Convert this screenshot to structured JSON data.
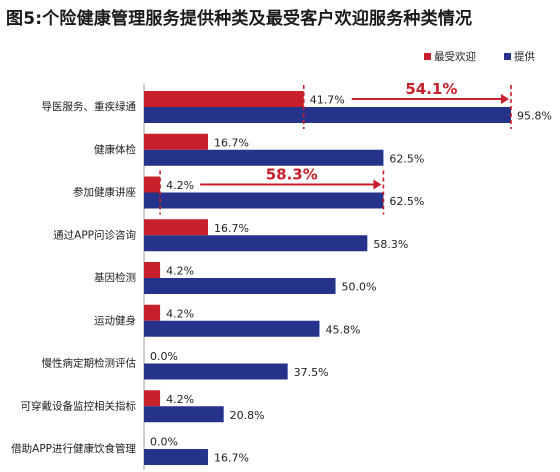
{
  "title": "图5:个险健康管理服务提供种类及最受客户欢迎服务种类情况",
  "chart_data": {
    "type": "bar",
    "orientation": "horizontal",
    "categories": [
      "导医服务、重疾绿通",
      "健康体检",
      "参加健康讲座",
      "通过APP问诊咨询",
      "基因检测",
      "运动健身",
      "慢性病定期检测评估",
      "可穿戴设备监控相关指标",
      "借助APP进行健康饮食管理"
    ],
    "series": [
      {
        "name": "最受欢迎",
        "color": "#c8202b",
        "values": [
          41.7,
          16.7,
          4.2,
          16.7,
          4.2,
          4.2,
          0.0,
          4.2,
          0.0
        ],
        "labels": [
          "41.7%",
          "16.7%",
          "4.2%",
          "16.7%",
          "4.2%",
          "4.2%",
          "0.0%",
          "4.2%",
          "0.0%"
        ]
      },
      {
        "name": "提供",
        "color": "#25338a",
        "values": [
          95.8,
          62.5,
          62.5,
          58.3,
          50.0,
          45.8,
          37.5,
          20.8,
          16.7
        ],
        "labels": [
          "95.8%",
          "62.5%",
          "62.5%",
          "58.3%",
          "50.0%",
          "45.8%",
          "37.5%",
          "20.8%",
          "16.7%"
        ]
      }
    ],
    "xlim": [
      0,
      100
    ],
    "legend_position": "top-right",
    "grid": false,
    "annotations": [
      {
        "category_index": 0,
        "text": "54.1%",
        "from": 41.7,
        "to": 95.8
      },
      {
        "category_index": 2,
        "text": "58.3%",
        "from": 4.2,
        "to": 62.5
      }
    ]
  }
}
